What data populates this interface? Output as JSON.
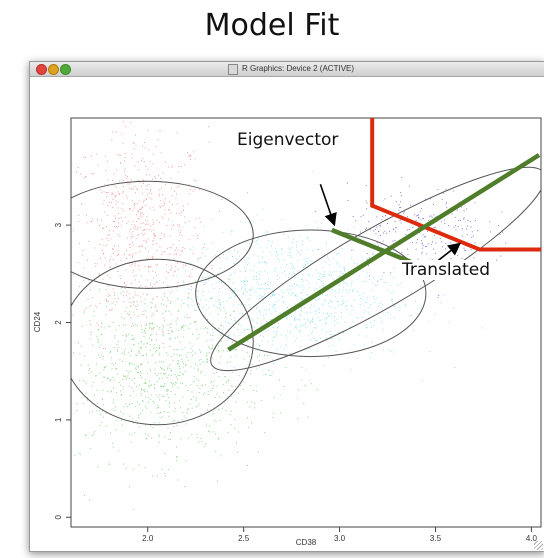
{
  "slide": {
    "title": "Model Fit"
  },
  "window": {
    "title": "R Graphics: Device 2 (ACTIVE)"
  },
  "annotations": {
    "eigenvector": "Eigenvector",
    "translated": "Translated"
  },
  "colors": {
    "red_population": "#f08a8a",
    "green_population": "#6fcf6a",
    "cyan_population": "#7fdff0",
    "blue_population": "#6a5fd8",
    "ellipse": "#555555",
    "eigenvector_line": "#4f7d2a",
    "gate": "#dd2a0c"
  },
  "chart_data": {
    "type": "scatter",
    "title": "",
    "xlabel": "CD38",
    "ylabel": "CD24",
    "xlim": [
      1.6,
      4.05
    ],
    "ylim": [
      -0.1,
      4.1
    ],
    "x_ticks": [
      "2.0",
      "2.5",
      "3.0",
      "3.5",
      "4.0"
    ],
    "y_ticks": [
      "0",
      "1",
      "2",
      "3"
    ],
    "populations": [
      {
        "color": "red",
        "center": [
          1.95,
          2.9
        ],
        "spread": [
          0.18,
          0.55
        ],
        "count": 700
      },
      {
        "color": "green",
        "center": [
          2.05,
          1.5
        ],
        "spread": [
          0.28,
          0.45
        ],
        "count": 900
      },
      {
        "color": "cyan",
        "center": [
          2.75,
          2.3
        ],
        "spread": [
          0.3,
          0.35
        ],
        "count": 900
      },
      {
        "color": "blue",
        "center": [
          3.4,
          2.95
        ],
        "spread": [
          0.18,
          0.22
        ],
        "count": 250
      }
    ],
    "ellipses": [
      {
        "center": [
          2.0,
          2.9
        ],
        "rx": 0.55,
        "ry": 0.55,
        "angle": 0
      },
      {
        "center": [
          2.05,
          1.8
        ],
        "rx": 0.5,
        "ry": 0.85,
        "angle": 0
      },
      {
        "center": [
          2.85,
          2.3
        ],
        "rx": 0.6,
        "ry": 0.65,
        "angle": 0
      },
      {
        "center": [
          3.2,
          2.55
        ],
        "rx": 1.0,
        "ry": 0.4,
        "angle": 30
      }
    ],
    "eigenvectors": [
      {
        "from": [
          2.42,
          1.72
        ],
        "to": [
          4.04,
          3.72
        ]
      },
      {
        "from": [
          2.96,
          2.95
        ],
        "to": [
          3.55,
          2.48
        ]
      }
    ],
    "gate": [
      [
        3.17,
        4.5
      ],
      [
        3.17,
        3.2
      ],
      [
        3.73,
        2.75
      ],
      [
        4.05,
        2.75
      ]
    ],
    "arrows": [
      {
        "from": [
          2.9,
          3.42
        ],
        "to": [
          2.97,
          3.02
        ]
      },
      {
        "from": [
          3.49,
          2.6
        ],
        "to": [
          3.62,
          2.8
        ]
      }
    ]
  }
}
